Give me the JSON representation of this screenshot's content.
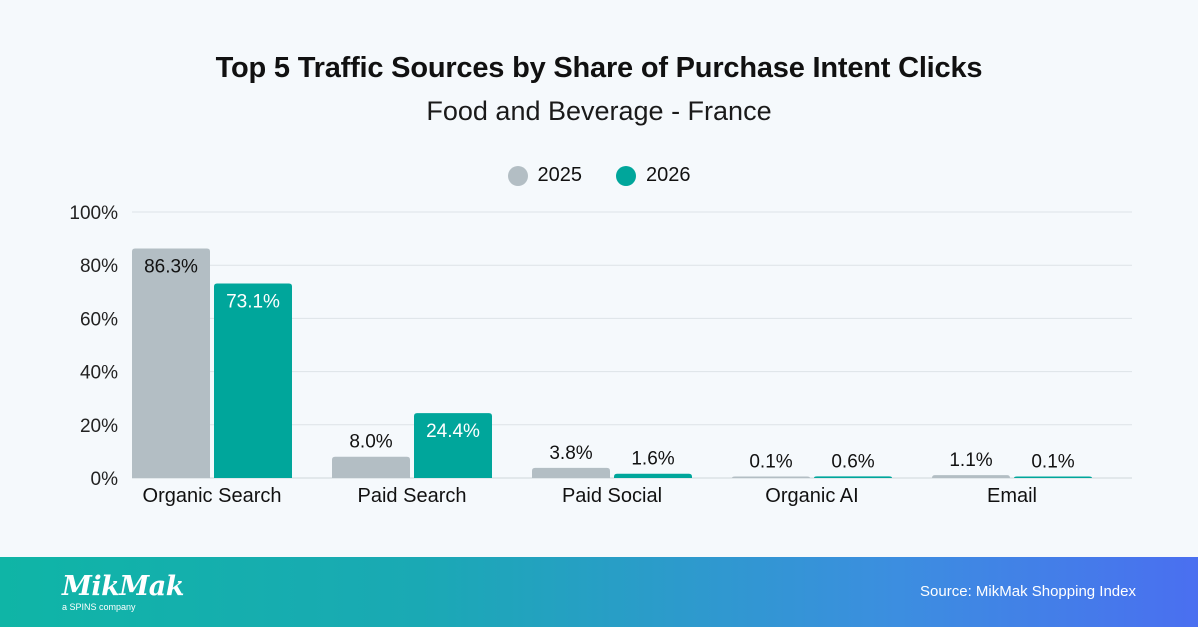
{
  "chart_data": {
    "type": "bar",
    "title": "Top 5 Traffic Sources by Share of Purchase Intent Clicks",
    "subtitle": "Food and Beverage - France",
    "categories": [
      "Organic Search",
      "Paid Search",
      "Paid Social",
      "Organic AI",
      "Email"
    ],
    "series": [
      {
        "name": "2025",
        "color": "#b3bec4",
        "values": [
          86.3,
          8.0,
          3.8,
          0.1,
          1.1
        ],
        "labels": [
          "86.3%",
          "8.0%",
          "3.8%",
          "0.1%",
          "1.1%"
        ]
      },
      {
        "name": "2026",
        "color": "#00a69b",
        "values": [
          73.1,
          24.4,
          1.6,
          0.6,
          0.1
        ],
        "labels": [
          "73.1%",
          "24.4%",
          "1.6%",
          "0.6%",
          "0.1%"
        ]
      }
    ],
    "yticks": [
      "0%",
      "20%",
      "40%",
      "60%",
      "80%",
      "100%"
    ],
    "ylim": [
      0,
      100
    ],
    "grid": true,
    "legend": "top-center"
  },
  "footer": {
    "logo": "MikMak",
    "logo_sub": "a SPINS company",
    "source": "Source: MikMak Shopping Index"
  }
}
